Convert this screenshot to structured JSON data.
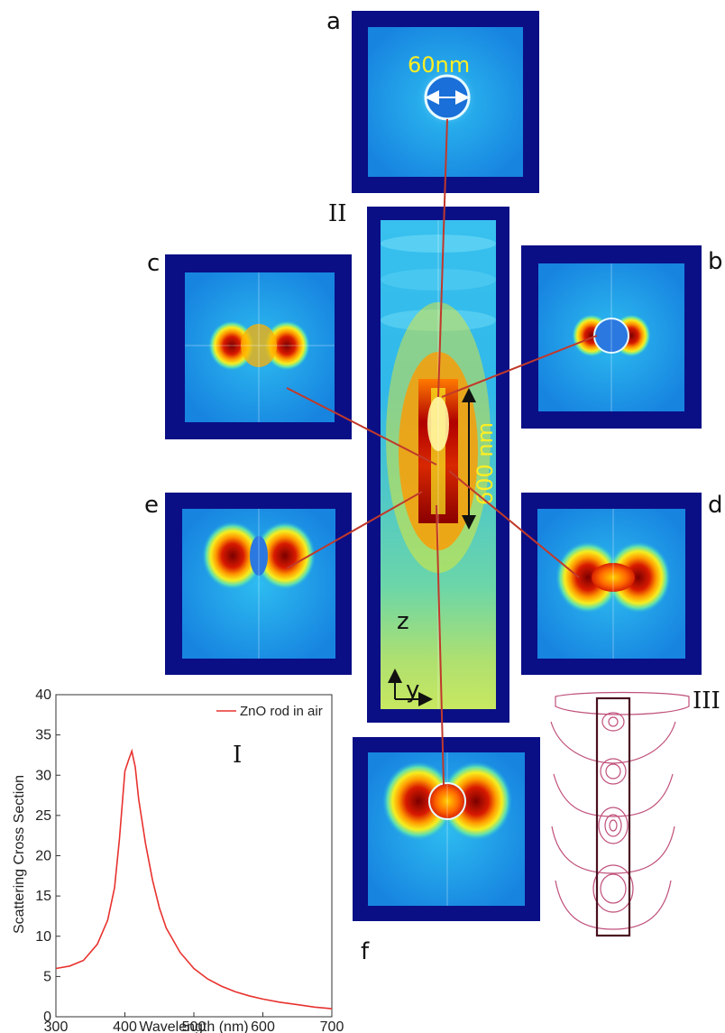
{
  "panels": {
    "a": "a",
    "b": "b",
    "c": "c",
    "d": "d",
    "e": "e",
    "f": "f",
    "II": "II",
    "III": "III",
    "I": "I"
  },
  "annotations": {
    "diameter": "60nm",
    "length": "600 nm",
    "axis_z": "z",
    "axis_y": "y"
  },
  "colors": {
    "field_background": "#1ea8ea",
    "frame": "#0a0f86",
    "hot": "#8b0000",
    "connector": "#c0392b",
    "contour": "#c0507a",
    "curve": "#e8322e"
  },
  "chart_data": {
    "type": "line",
    "xlabel": "Wavelength (nm)",
    "ylabel": "Scattering Cross Section",
    "xlim": [
      300,
      700
    ],
    "ylim": [
      0,
      40
    ],
    "xticks": [
      300,
      400,
      500,
      600,
      700
    ],
    "yticks": [
      0,
      5,
      10,
      15,
      20,
      25,
      30,
      35,
      40
    ],
    "grid": false,
    "legend_position": "top-right",
    "series": [
      {
        "name": "ZnO rod in air",
        "color": "#e8322e",
        "x": [
          300,
          320,
          340,
          360,
          375,
          385,
          392,
          400,
          405,
          410,
          415,
          420,
          430,
          440,
          450,
          460,
          480,
          500,
          520,
          540,
          560,
          580,
          600,
          625,
          650,
          675,
          700
        ],
        "y": [
          6.0,
          6.3,
          7.0,
          9.0,
          12.0,
          16.0,
          22.0,
          30.5,
          31.8,
          33.0,
          31.0,
          27.0,
          21.5,
          17.0,
          13.5,
          11.0,
          8.0,
          6.0,
          4.7,
          3.8,
          3.1,
          2.6,
          2.2,
          1.8,
          1.5,
          1.2,
          1.0
        ]
      }
    ]
  }
}
